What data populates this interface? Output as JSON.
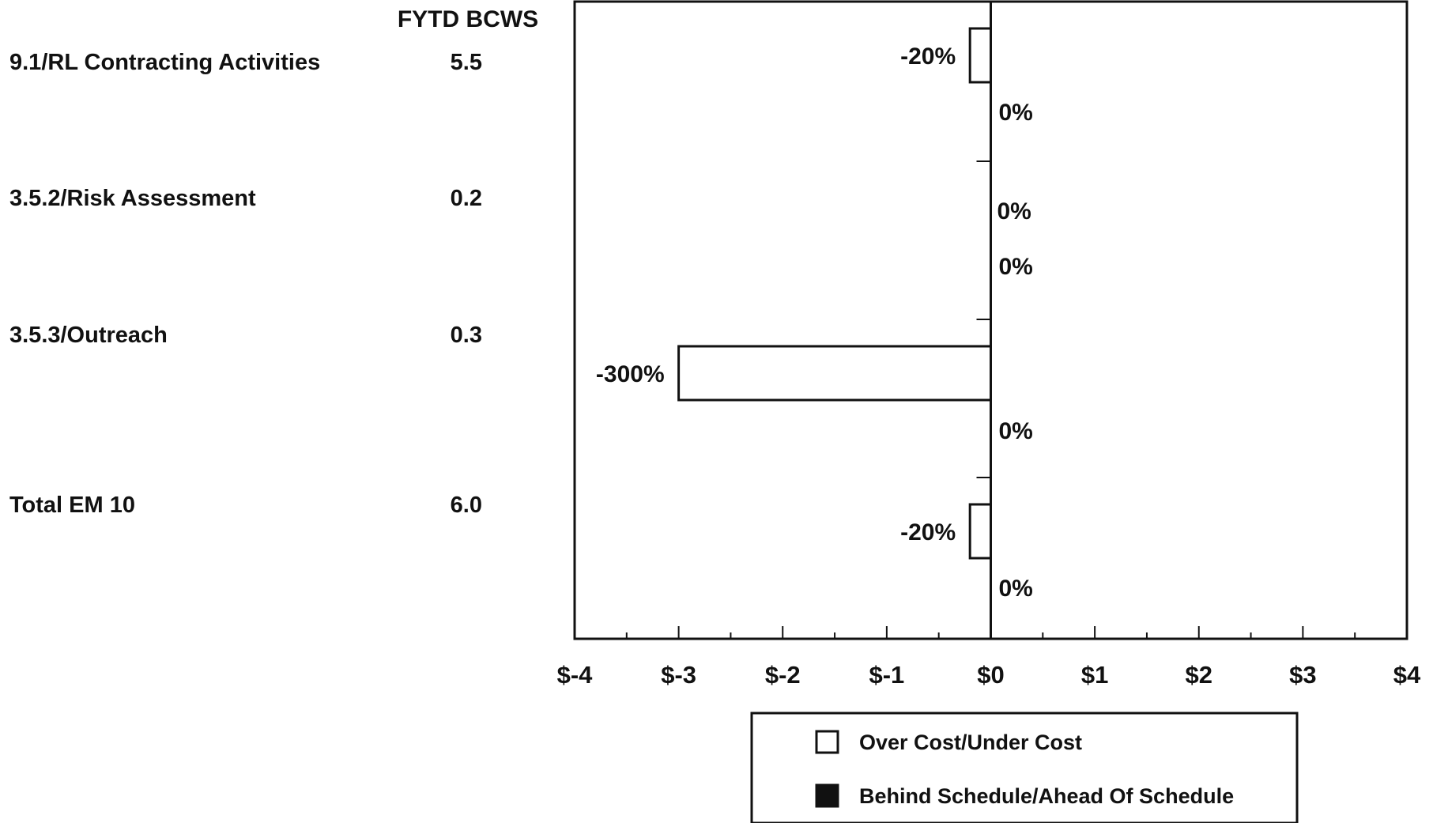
{
  "chart_data": {
    "type": "bar",
    "orientation": "horizontal",
    "column_header": "FYTD BCWS",
    "categories": [
      {
        "label": "9.1/RL Contracting Activities",
        "bcws": "5.5"
      },
      {
        "label": "3.5.2/Risk Assessment",
        "bcws": "0.2"
      },
      {
        "label": "3.5.3/Outreach",
        "bcws": "0.3"
      },
      {
        "label": "Total EM 10",
        "bcws": "6.0"
      }
    ],
    "series": [
      {
        "name": "Over Cost/Under Cost",
        "color": "#ffffff",
        "values": [
          -0.2,
          0,
          -3.0,
          -0.2
        ],
        "labels": [
          "-20%",
          "0%",
          "-300%",
          "-20%"
        ]
      },
      {
        "name": "Behind Schedule/Ahead Of Schedule",
        "color": "#111111",
        "values": [
          0,
          0,
          0,
          0
        ],
        "labels": [
          "0%",
          "0%",
          "0%",
          "0%"
        ]
      }
    ],
    "xlim": [
      -4,
      4
    ],
    "xticks": [
      "$-4",
      "$-3",
      "$-2",
      "$-1",
      "$0",
      "$1",
      "$2",
      "$3",
      "$4"
    ],
    "grid": false,
    "legend_position": "bottom"
  }
}
